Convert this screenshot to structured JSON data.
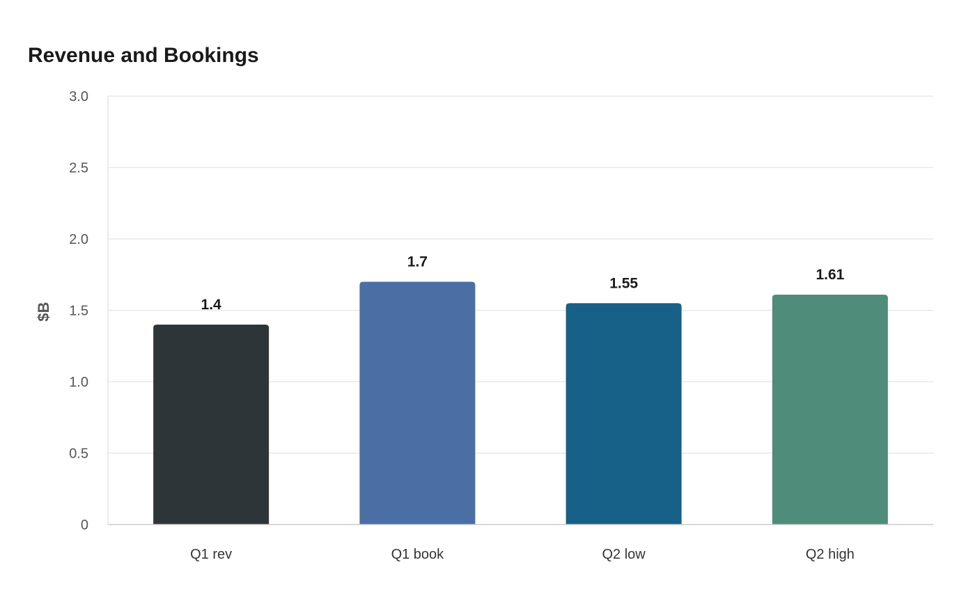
{
  "chart_data": {
    "type": "bar",
    "title": "Revenue and Bookings",
    "xlabel": "",
    "ylabel": "$B",
    "categories": [
      "Q1 rev",
      "Q1 book",
      "Q2 low",
      "Q2 high"
    ],
    "values": [
      1.4,
      1.7,
      1.55,
      1.61
    ],
    "value_labels": [
      "1.4",
      "1.7",
      "1.55",
      "1.61"
    ],
    "colors": [
      "#2e3538",
      "#4a6fa5",
      "#176087",
      "#4f8c7a"
    ],
    "ylim": [
      0,
      3.0
    ],
    "yticks": [
      0,
      0.5,
      1.0,
      1.5,
      2.0,
      2.5,
      3.0
    ],
    "ytick_labels": [
      "0",
      "0.5",
      "1.0",
      "1.5",
      "2.0",
      "2.5",
      "3.0"
    ],
    "grid": true,
    "legend": "none",
    "gridline_color": "#e8e8e8",
    "axis_color": "#cccccc"
  }
}
